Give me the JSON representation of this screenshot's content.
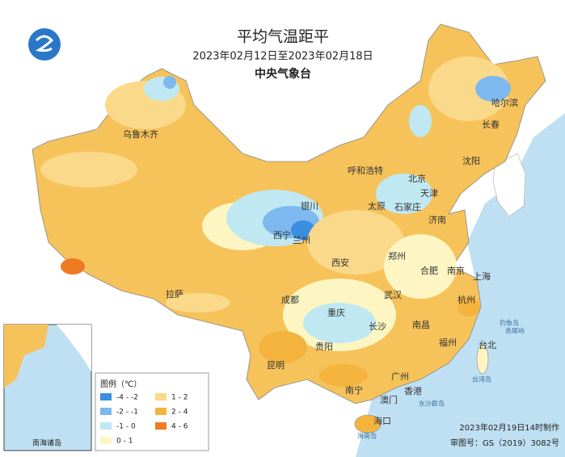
{
  "header": {
    "title": "平均气温距平",
    "subtitle": "2023年02月12日至2023年02月18日",
    "organization": "中央气象台"
  },
  "legend": {
    "title": "图例（℃）",
    "items": [
      {
        "label": "-4 - -2",
        "color": "#3a8fe0"
      },
      {
        "label": "-2 - -1",
        "color": "#7db8ef"
      },
      {
        "label": "-1 - 0",
        "color": "#bfe8f2"
      },
      {
        "label": "0 - 1",
        "color": "#fdf6c3"
      },
      {
        "label": "1 - 2",
        "color": "#fbd98a"
      },
      {
        "label": "2 - 4",
        "color": "#f4b33d"
      },
      {
        "label": "4 - 6",
        "color": "#ee7a22"
      }
    ]
  },
  "cities": [
    "乌鲁木齐",
    "哈尔滨",
    "长春",
    "沈阳",
    "呼和浩特",
    "北京",
    "天津",
    "银川",
    "太原",
    "石家庄",
    "济南",
    "西宁",
    "兰州",
    "郑州",
    "西安",
    "合肥",
    "南京",
    "上海",
    "拉萨",
    "成都",
    "武汉",
    "杭州",
    "重庆",
    "长沙",
    "南昌",
    "贵阳",
    "福州",
    "台北",
    "昆明",
    "广州",
    "南宁",
    "香港",
    "澳门",
    "海口"
  ],
  "places": [
    "东沙群岛",
    "钓鱼岛",
    "赤尾屿",
    "台湾岛",
    "海南岛"
  ],
  "inset": {
    "label": "南海诸岛"
  },
  "footer": {
    "made": "2023年02月19日14时制作",
    "approval": "审图号：GS（2019）3082号"
  }
}
